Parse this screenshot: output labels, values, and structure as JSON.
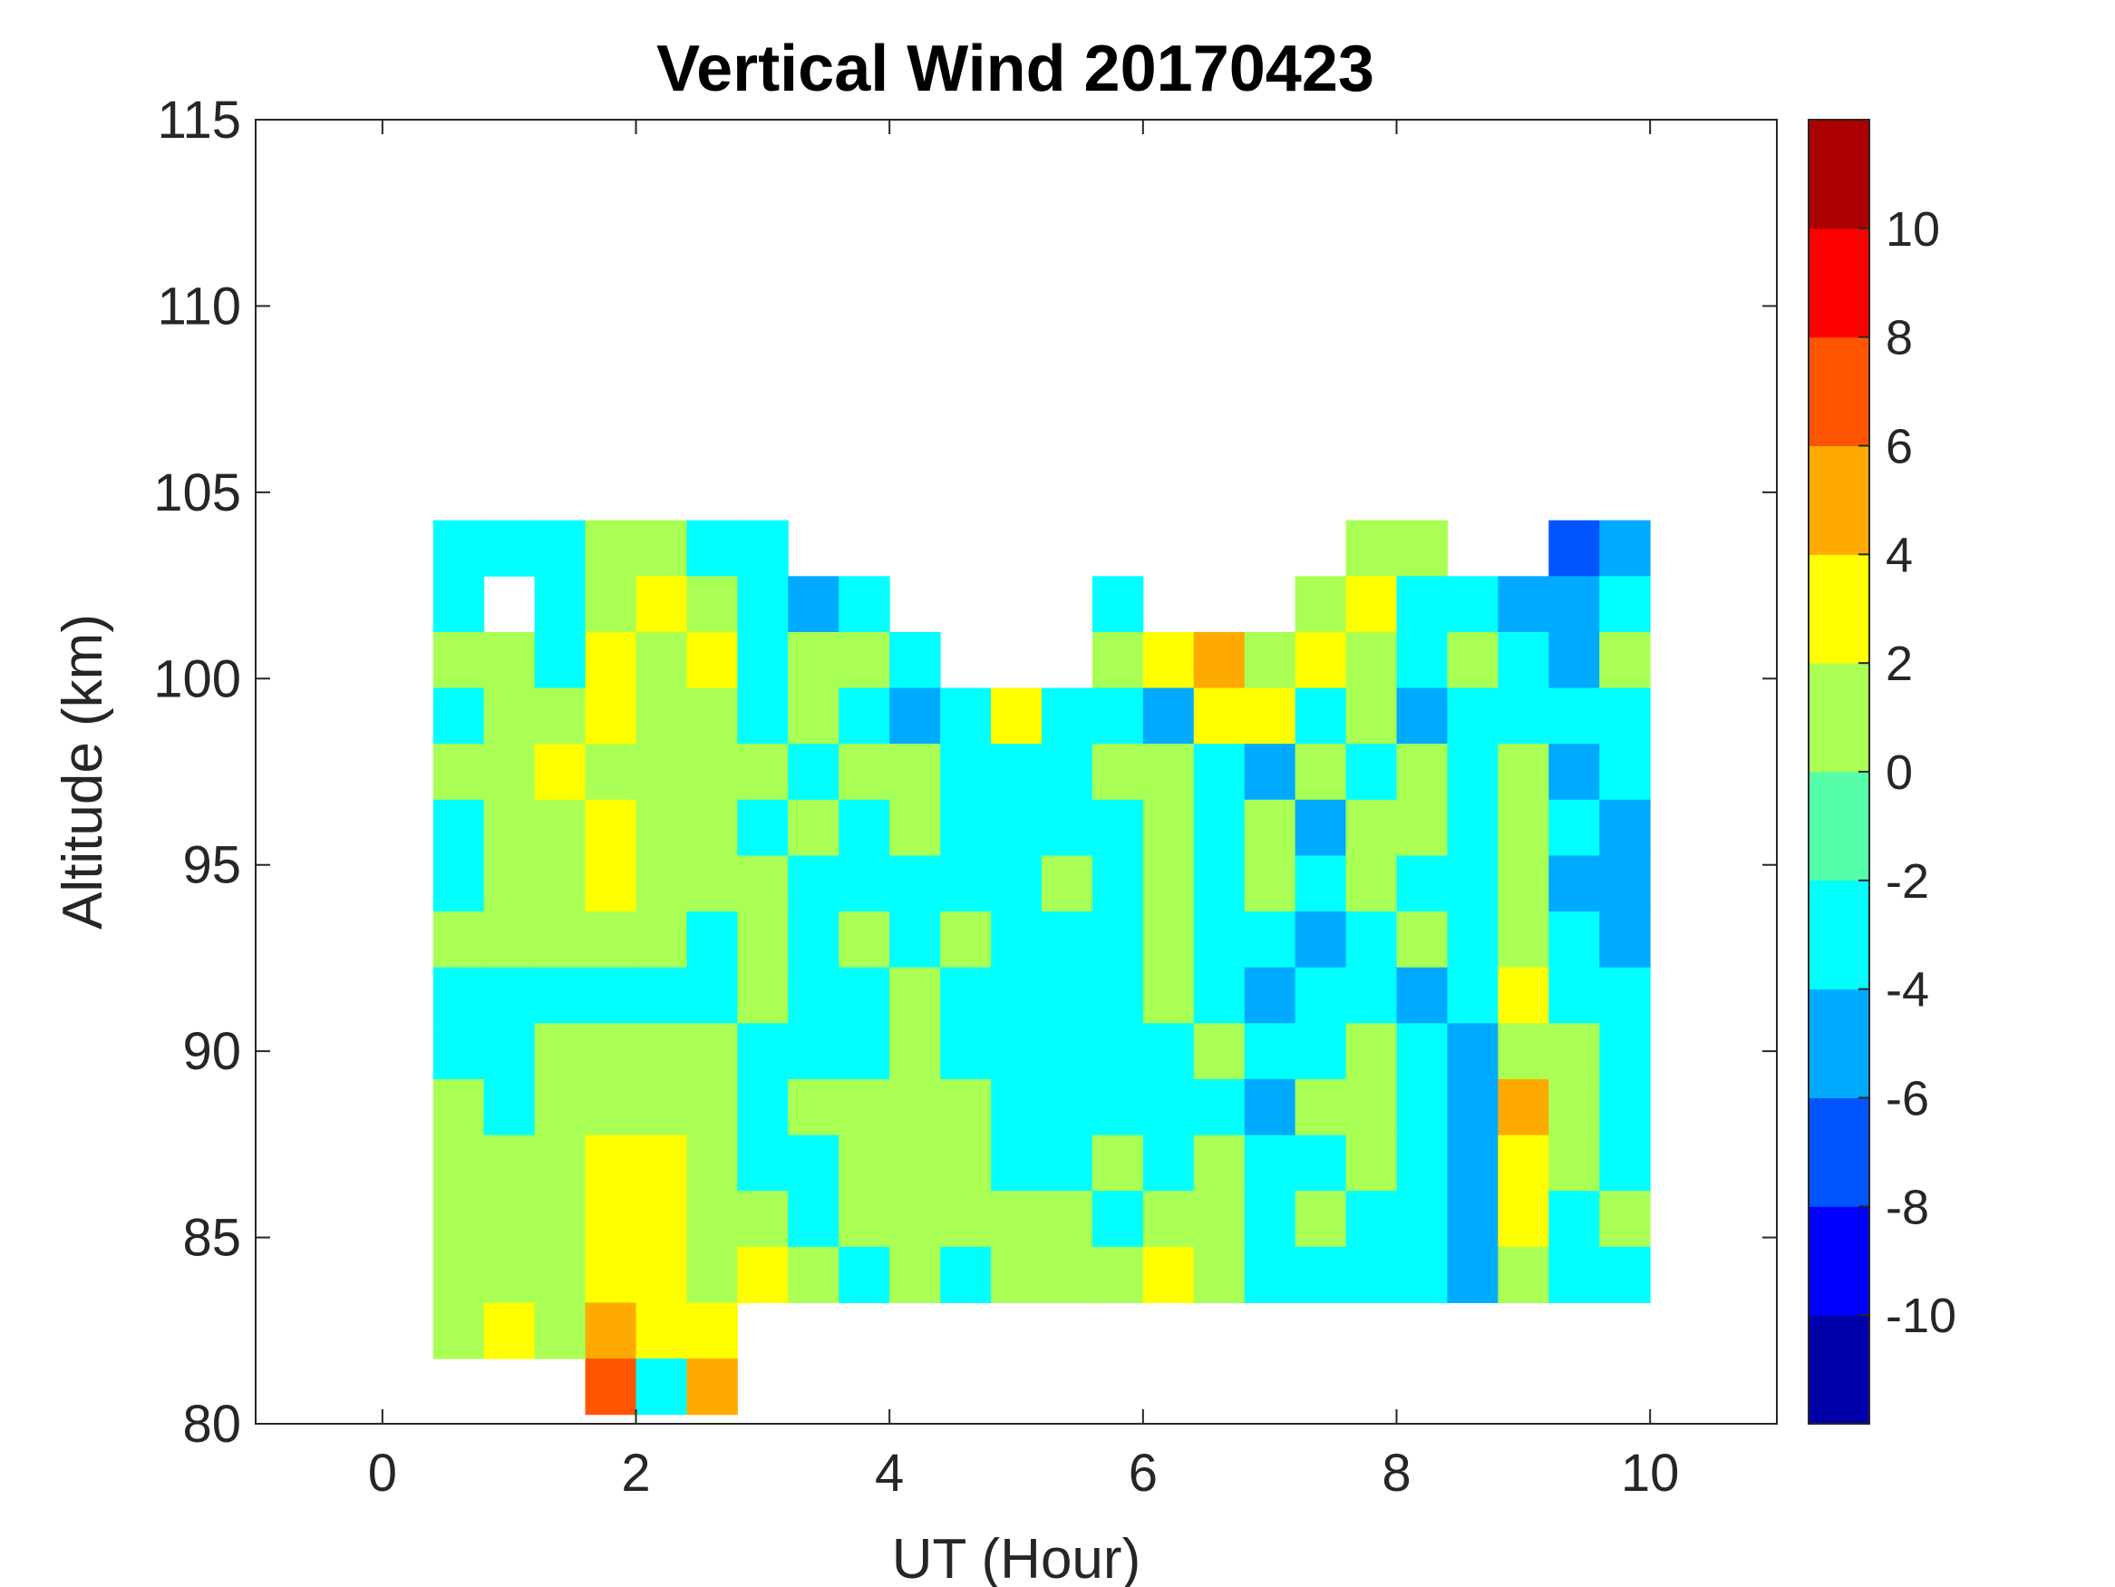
{
  "chart_data": {
    "type": "heatmap",
    "subtype": "filled-contour",
    "title": "Vertical Wind 20170423",
    "xlabel": "UT (Hour)",
    "ylabel": "Altitude (km)",
    "xlim": [
      -1,
      11
    ],
    "ylim": [
      80,
      115
    ],
    "xticks": [
      "0",
      "2",
      "4",
      "6",
      "8",
      "10"
    ],
    "xtick_values": [
      0,
      2,
      4,
      6,
      8,
      10
    ],
    "yticks": [
      "80",
      "85",
      "90",
      "95",
      "100",
      "105",
      "110",
      "115"
    ],
    "ytick_values": [
      80,
      85,
      90,
      95,
      100,
      105,
      110,
      115
    ],
    "x_step": 0.4,
    "y_step": 1.5,
    "x": [
      0.6,
      1.0,
      1.4,
      1.8,
      2.2,
      2.6,
      3.0,
      3.4,
      3.8,
      4.2,
      4.6,
      5.0,
      5.4,
      5.8,
      6.2,
      6.6,
      7.0,
      7.4,
      7.8,
      8.2,
      8.6,
      9.0,
      9.4,
      9.8
    ],
    "y": [
      103.5,
      102,
      100.5,
      99,
      97.5,
      96,
      94.5,
      93,
      91.5,
      90,
      88.5,
      87,
      85.5,
      84,
      82.5,
      81
    ],
    "z": [
      [
        -3,
        -3,
        -3,
        1,
        1,
        -3,
        -3,
        null,
        null,
        null,
        null,
        null,
        null,
        null,
        null,
        null,
        null,
        null,
        1,
        1,
        null,
        null,
        -7,
        -5
      ],
      [
        -3,
        null,
        -3,
        1,
        3,
        1,
        -3,
        -5,
        -3,
        null,
        null,
        null,
        null,
        -3,
        null,
        null,
        null,
        1,
        3,
        -3,
        -3,
        -5,
        -5,
        -3
      ],
      [
        1,
        1,
        -3,
        3,
        1,
        3,
        -3,
        1,
        1,
        -3,
        null,
        null,
        null,
        1,
        3,
        5,
        1,
        3,
        1,
        -3,
        1,
        -3,
        -5,
        1
      ],
      [
        -3,
        1,
        1,
        3,
        1,
        1,
        -3,
        1,
        -3,
        -5,
        -3,
        3,
        -3,
        -3,
        -5,
        3,
        3,
        -3,
        1,
        -5,
        -3,
        -3,
        -3,
        -3
      ],
      [
        1,
        1,
        3,
        1,
        1,
        1,
        1,
        -3,
        1,
        1,
        -3,
        -3,
        -3,
        1,
        1,
        -3,
        -5,
        1,
        -3,
        1,
        -3,
        1,
        -5,
        -3
      ],
      [
        -3,
        1,
        1,
        3,
        1,
        1,
        -3,
        1,
        -3,
        1,
        -3,
        -3,
        -3,
        -3,
        1,
        -3,
        1,
        -5,
        1,
        1,
        -3,
        1,
        -3,
        -5
      ],
      [
        -3,
        1,
        1,
        3,
        1,
        1,
        1,
        -3,
        -3,
        -3,
        -3,
        -3,
        1,
        -3,
        1,
        -3,
        1,
        -3,
        1,
        -3,
        -3,
        1,
        -5,
        -5
      ],
      [
        1,
        1,
        1,
        1,
        1,
        -3,
        1,
        -3,
        1,
        -3,
        1,
        -3,
        -3,
        -3,
        1,
        -3,
        -3,
        -5,
        -3,
        1,
        -3,
        1,
        -3,
        -5
      ],
      [
        -3,
        -3,
        -3,
        -3,
        -3,
        -3,
        1,
        -3,
        -3,
        1,
        -3,
        -3,
        -3,
        -3,
        1,
        -3,
        -5,
        -3,
        -3,
        -5,
        -3,
        3,
        -3,
        -3
      ],
      [
        -3,
        -3,
        1,
        1,
        1,
        1,
        -3,
        -3,
        -3,
        1,
        -3,
        -3,
        -3,
        -3,
        -3,
        1,
        -3,
        -3,
        1,
        -3,
        -5,
        1,
        1,
        -3
      ],
      [
        1,
        -3,
        1,
        1,
        1,
        1,
        -3,
        1,
        1,
        1,
        1,
        -3,
        -3,
        -3,
        -3,
        -3,
        -5,
        1,
        1,
        -3,
        -5,
        5,
        1,
        -3
      ],
      [
        1,
        1,
        1,
        3,
        3,
        1,
        -3,
        -3,
        1,
        1,
        1,
        -3,
        -3,
        1,
        -3,
        1,
        -3,
        -3,
        1,
        -3,
        -5,
        3,
        1,
        -3
      ],
      [
        1,
        1,
        1,
        3,
        3,
        1,
        1,
        -3,
        1,
        1,
        1,
        1,
        1,
        -3,
        1,
        1,
        -3,
        1,
        -3,
        -3,
        -5,
        3,
        -3,
        1
      ],
      [
        1,
        1,
        1,
        3,
        3,
        1,
        3,
        1,
        -3,
        1,
        -3,
        1,
        1,
        1,
        3,
        1,
        -3,
        -3,
        -3,
        -3,
        -5,
        1,
        -3,
        -3
      ],
      [
        1,
        3,
        1,
        5,
        3,
        3,
        null,
        null,
        null,
        null,
        null,
        null,
        null,
        null,
        null,
        null,
        null,
        null,
        null,
        null,
        null,
        null,
        null,
        null
      ],
      [
        null,
        null,
        null,
        7,
        -3,
        5,
        null,
        null,
        null,
        null,
        null,
        null,
        null,
        null,
        null,
        null,
        null,
        null,
        null,
        null,
        null,
        null,
        null,
        null
      ]
    ],
    "colorbar": {
      "levels": [
        -12,
        -10,
        -8,
        -6,
        -4,
        -2,
        0,
        2,
        4,
        6,
        8,
        10,
        12
      ],
      "colors": [
        "#0000aa",
        "#0000ff",
        "#0055ff",
        "#00aaff",
        "#00ffff",
        "#55ffaa",
        "#aaff55",
        "#ffff00",
        "#ffaa00",
        "#ff5500",
        "#ff0000",
        "#aa0000"
      ],
      "ticks": [
        "-10",
        "-8",
        "-6",
        "-4",
        "-2",
        "0",
        "2",
        "4",
        "6",
        "8",
        "10"
      ],
      "tick_values": [
        -10,
        -8,
        -6,
        -4,
        -2,
        0,
        2,
        4,
        6,
        8,
        10
      ]
    },
    "grid": false,
    "legend": "none"
  }
}
